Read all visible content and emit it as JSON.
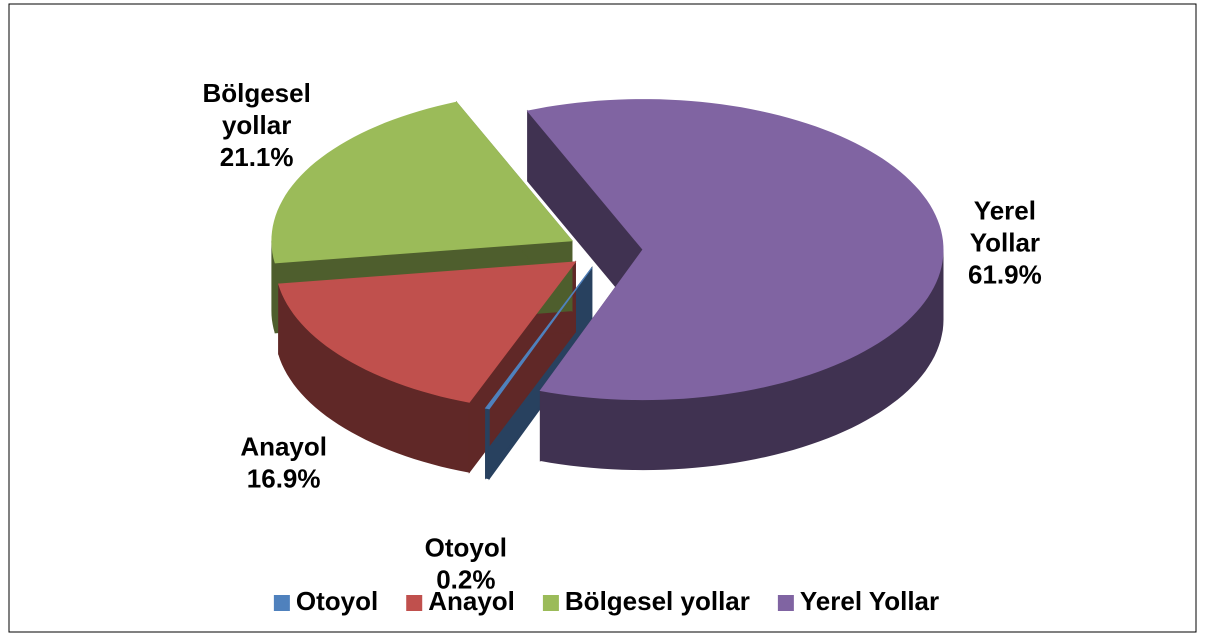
{
  "chart_data": {
    "type": "pie",
    "categories": [
      "Otoyol",
      "Anayol",
      "Bölgesel yollar",
      "Yerel Yollar"
    ],
    "values": [
      0.2,
      16.9,
      21.1,
      61.9
    ],
    "value_labels": [
      "0.2%",
      "16.9%",
      "21.1%",
      "61.9%"
    ],
    "colors": [
      "#4f81bd",
      "#c0504d",
      "#9bbb59",
      "#8064a2"
    ],
    "legend": "bottom"
  }
}
